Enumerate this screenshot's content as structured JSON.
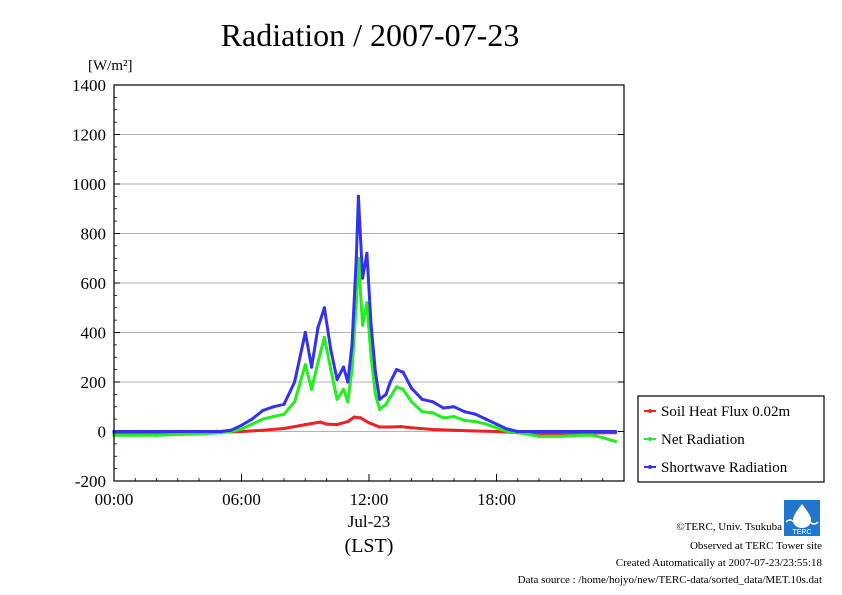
{
  "chart_data": {
    "type": "line",
    "title": "Radiation / 2007-07-23",
    "ylabel": "[W/m²]",
    "xlabel_date": "Jul-23",
    "xlabel": "(LST)",
    "x_unit": "hours (LST)",
    "xlim": [
      0,
      24
    ],
    "ylim": [
      -200,
      1400
    ],
    "yticks": [
      -200,
      0,
      200,
      400,
      600,
      800,
      1000,
      1200,
      1400
    ],
    "xticks": [
      {
        "value": 0,
        "label": "00:00"
      },
      {
        "value": 6,
        "label": "06:00"
      },
      {
        "value": 12,
        "label": "12:00"
      },
      {
        "value": 18,
        "label": "18:00"
      }
    ],
    "grid": "horizontal",
    "legend_position": "right",
    "series": [
      {
        "name": "Soil Heat Flux 0.02m",
        "color": "#ee2222",
        "x": [
          0,
          3,
          5,
          6,
          7,
          8,
          9,
          9.7,
          10,
          10.5,
          11,
          11.3,
          11.6,
          12,
          12.5,
          13,
          13.5,
          14,
          15,
          16,
          17,
          18,
          19,
          20,
          21,
          22,
          23,
          23.6
        ],
        "y": [
          -5,
          -5,
          -3,
          0,
          5,
          12,
          28,
          38,
          30,
          28,
          40,
          58,
          55,
          35,
          18,
          18,
          20,
          15,
          8,
          5,
          2,
          0,
          -5,
          -10,
          -10,
          -8,
          -5,
          -5
        ]
      },
      {
        "name": "Net Radiation",
        "color": "#22ee22",
        "x": [
          0,
          1,
          2,
          3,
          4,
          5,
          5.5,
          6,
          6.5,
          7,
          7.5,
          8,
          8.5,
          9,
          9.3,
          9.6,
          9.9,
          10.2,
          10.5,
          10.8,
          11,
          11.2,
          11.4,
          11.5,
          11.7,
          11.9,
          12.1,
          12.3,
          12.5,
          12.8,
          13,
          13.3,
          13.6,
          14,
          14.5,
          15,
          15.5,
          16,
          16.5,
          17,
          17.5,
          18,
          18.5,
          19,
          20,
          21,
          22,
          22.5,
          23,
          23.6
        ],
        "y": [
          -15,
          -15,
          -15,
          -12,
          -10,
          -5,
          0,
          10,
          30,
          50,
          60,
          70,
          120,
          270,
          170,
          280,
          380,
          250,
          130,
          170,
          120,
          250,
          520,
          700,
          430,
          520,
          300,
          150,
          90,
          110,
          140,
          180,
          170,
          120,
          80,
          75,
          55,
          60,
          45,
          40,
          30,
          15,
          0,
          -5,
          -20,
          -20,
          -15,
          -15,
          -25,
          -40
        ]
      },
      {
        "name": "Shortwave Radiation",
        "color": "#3333ee",
        "x": [
          0,
          1,
          2,
          3,
          4,
          5,
          5.5,
          6,
          6.5,
          7,
          7.5,
          8,
          8.5,
          9,
          9.3,
          9.6,
          9.9,
          10.2,
          10.5,
          10.8,
          11,
          11.2,
          11.4,
          11.5,
          11.7,
          11.9,
          12.1,
          12.3,
          12.5,
          12.8,
          13,
          13.3,
          13.6,
          14,
          14.5,
          15,
          15.5,
          16,
          16.5,
          17,
          17.5,
          18,
          18.5,
          19,
          20,
          21,
          22,
          22.5,
          23,
          23.6
        ],
        "y": [
          0,
          0,
          0,
          0,
          0,
          0,
          5,
          25,
          50,
          85,
          100,
          110,
          200,
          400,
          260,
          420,
          500,
          330,
          210,
          260,
          200,
          350,
          700,
          950,
          620,
          720,
          430,
          240,
          130,
          150,
          200,
          250,
          240,
          175,
          130,
          120,
          95,
          100,
          80,
          70,
          50,
          30,
          10,
          0,
          0,
          0,
          0,
          0,
          0,
          0
        ]
      }
    ]
  },
  "credits": {
    "copyright": "©TERC, Univ. Tsukuba",
    "observed": "Observed at TERC Tower site",
    "created": "Created Automatically at 2007-07-23/23:55:18",
    "source": "Data source : /home/hojyo/new/TERC-data/sorted_data/MET.10s.dat",
    "logo_text": "TERC"
  }
}
